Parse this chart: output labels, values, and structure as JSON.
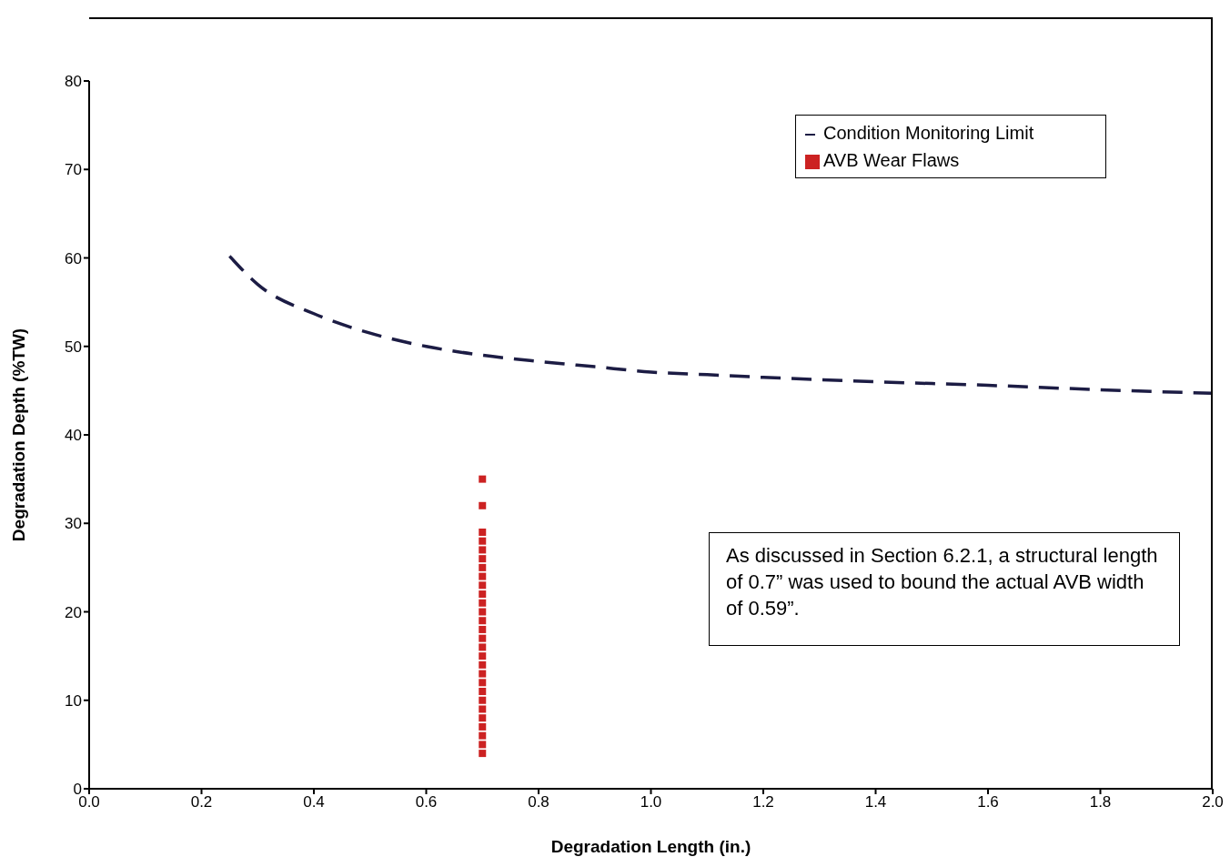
{
  "chart_data": {
    "type": "line",
    "xlabel": "Degradation Length (in.)",
    "ylabel": "Degradation Depth (%TW)",
    "xlim": [
      0,
      2
    ],
    "xticks": [
      {
        "value": 0,
        "label": "0.0"
      },
      {
        "value": 0.2,
        "label": "0.2"
      },
      {
        "value": 0.4,
        "label": "0.4"
      },
      {
        "value": 0.6,
        "label": "0.6"
      },
      {
        "value": 0.8,
        "label": "0.8"
      },
      {
        "value": 1,
        "label": "1.0"
      },
      {
        "value": 1.2,
        "label": "1.2"
      },
      {
        "value": 1.4,
        "label": "1.4"
      },
      {
        "value": 1.6,
        "label": "1.6"
      },
      {
        "value": 1.8,
        "label": "1.8"
      },
      {
        "value": 2,
        "label": "2.0"
      }
    ],
    "ylim": [
      0,
      80
    ],
    "yticks": [
      0,
      10,
      20,
      30,
      40,
      50,
      60,
      70,
      80
    ],
    "grid": false,
    "legend": "top right",
    "series": [
      {
        "name": "Condition Monitoring Limit",
        "color": "#1c1c44",
        "line_style": "dashed",
        "marker": "none",
        "x": [
          0.25,
          0.3,
          0.4,
          0.5,
          0.6,
          0.7,
          0.8,
          0.9,
          1.0,
          1.1,
          1.2,
          1.4,
          1.6,
          1.8,
          2.0
        ],
        "values": [
          60.2,
          57,
          53.7,
          51.5,
          50,
          49,
          48.3,
          47.7,
          47.1,
          46.8,
          46.5,
          46,
          45.6,
          45.1,
          44.7
        ]
      },
      {
        "name": "AVB Wear Flaws",
        "type": "scatter",
        "color": "#cc2222",
        "marker": "square",
        "x": [
          0.7,
          0.7,
          0.7,
          0.7,
          0.7,
          0.7,
          0.7,
          0.7,
          0.7,
          0.7,
          0.7,
          0.7,
          0.7,
          0.7,
          0.7,
          0.7,
          0.7,
          0.7,
          0.7,
          0.7,
          0.7,
          0.7,
          0.7,
          0.7,
          0.7,
          0.7,
          0.7,
          0.7
        ],
        "values": [
          35,
          32,
          29,
          28,
          27,
          26,
          25,
          24,
          23,
          22,
          21,
          20,
          19,
          18,
          17,
          16,
          15,
          14,
          13,
          12,
          11,
          10,
          9,
          8,
          7,
          6,
          5,
          4
        ]
      }
    ],
    "annotations": [
      "As discussed in Section 6.2.1, a structural length of 0.7” was used to bound the actual AVB width of 0.59”."
    ]
  }
}
